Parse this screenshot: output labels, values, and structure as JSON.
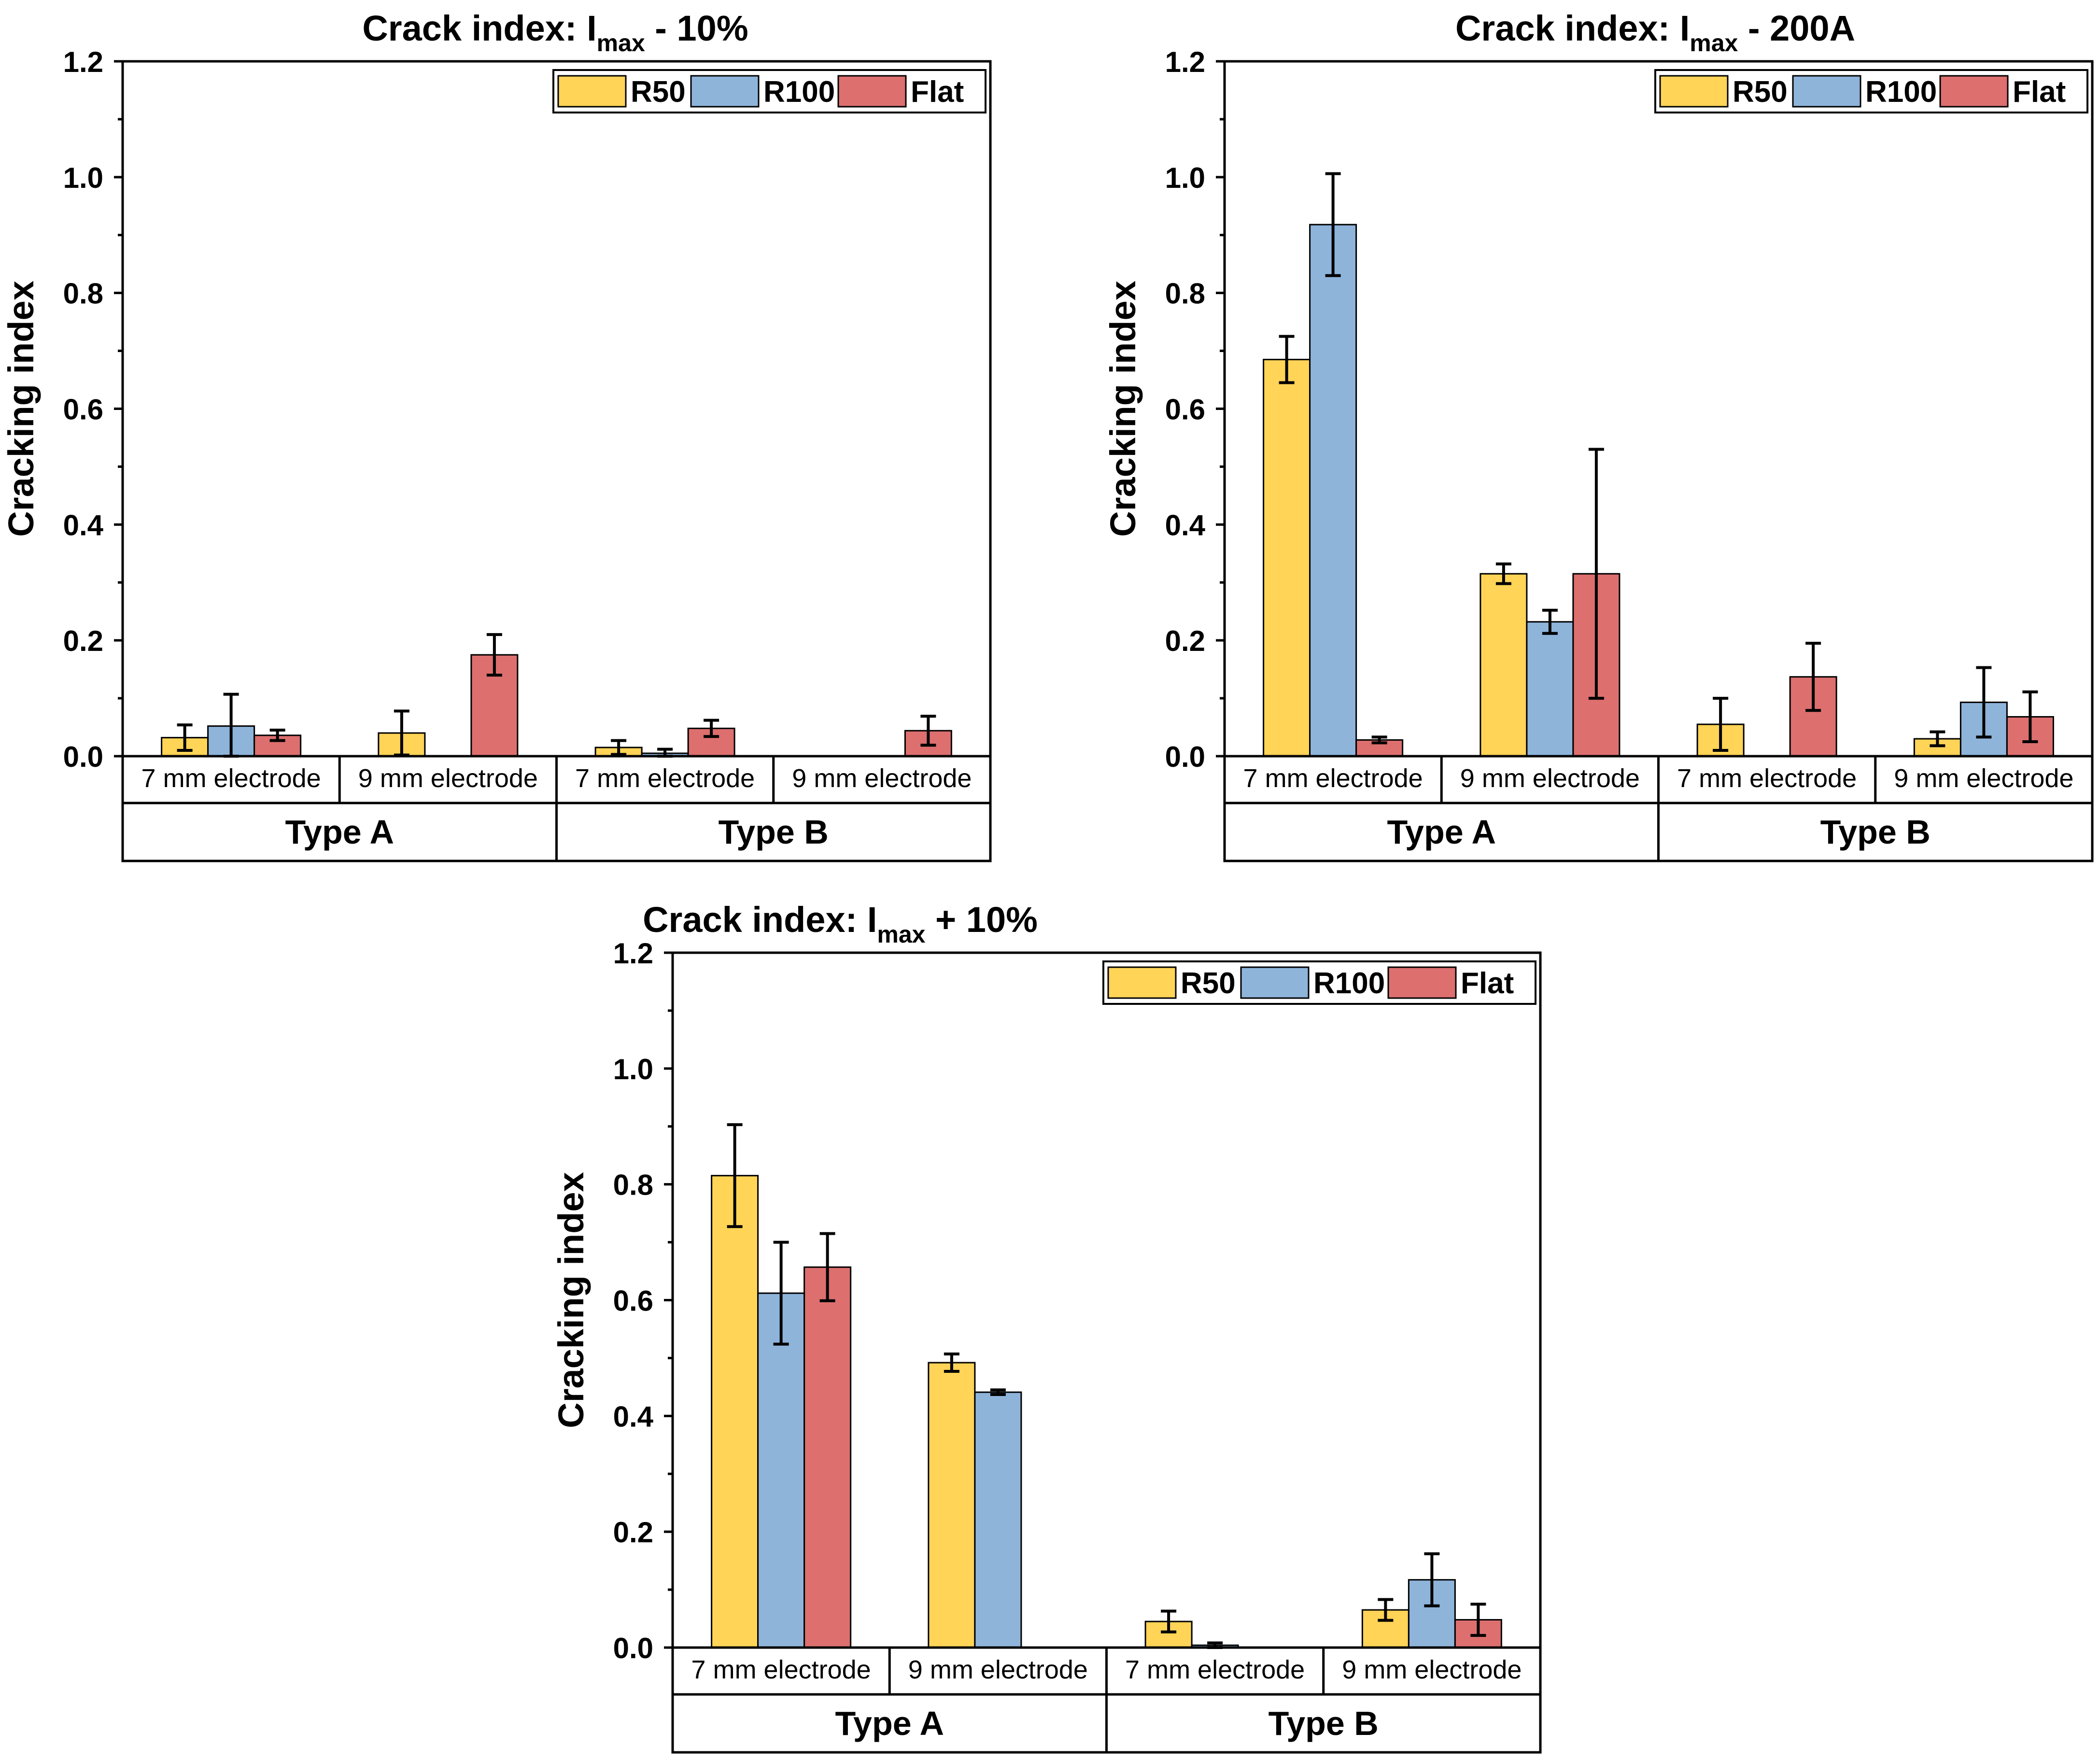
{
  "series_colors": {
    "R50": "#FFD457",
    "R100": "#8EB4DA",
    "Flat": "#DD6F6F"
  },
  "y_tick_labels": [
    "0.0",
    "0.2",
    "0.4",
    "0.6",
    "0.8",
    "1.0",
    "1.2"
  ],
  "chart_data": [
    {
      "type": "bar",
      "title_prefix": "Crack index: I",
      "title_subscript": "max",
      "title_suffix": " - 10%",
      "ylabel": "Cracking index",
      "ylim": [
        0,
        1.2
      ],
      "groups": [
        "Type A",
        "Type B"
      ],
      "categories": [
        "7 mm electrode",
        "9 mm electrode",
        "7 mm electrode",
        "9 mm electrode"
      ],
      "legend": {
        "position": "top-right",
        "entries": [
          "R50",
          "R100",
          "Flat"
        ]
      },
      "series": [
        {
          "name": "R50",
          "values": [
            0.032,
            0.04,
            0.015,
            null
          ],
          "errors": [
            0.022,
            0.038,
            0.012,
            null
          ]
        },
        {
          "name": "R100",
          "values": [
            0.052,
            null,
            0.005,
            null
          ],
          "errors": [
            0.055,
            null,
            0.007,
            null
          ]
        },
        {
          "name": "Flat",
          "values": [
            0.036,
            0.175,
            0.048,
            0.044
          ],
          "errors": [
            0.009,
            0.035,
            0.014,
            0.025
          ]
        }
      ]
    },
    {
      "type": "bar",
      "title_prefix": "Crack index: I",
      "title_subscript": "max",
      "title_suffix": " - 200A",
      "ylabel": "Cracking index",
      "ylim": [
        0,
        1.2
      ],
      "groups": [
        "Type A",
        "Type B"
      ],
      "categories": [
        "7 mm electrode",
        "9 mm electrode",
        "7 mm electrode",
        "9 mm electrode"
      ],
      "legend": {
        "position": "top-right",
        "entries": [
          "R50",
          "R100",
          "Flat"
        ]
      },
      "series": [
        {
          "name": "R50",
          "values": [
            0.685,
            0.315,
            0.055,
            0.03
          ],
          "errors": [
            0.04,
            0.017,
            0.045,
            0.012
          ]
        },
        {
          "name": "R100",
          "values": [
            0.918,
            0.232,
            null,
            0.093
          ],
          "errors": [
            0.088,
            0.02,
            null,
            0.06
          ]
        },
        {
          "name": "Flat",
          "values": [
            0.028,
            0.315,
            0.137,
            0.068
          ],
          "errors": [
            0.005,
            0.215,
            0.058,
            0.043
          ]
        }
      ]
    },
    {
      "type": "bar",
      "title_prefix": "Crack index: I",
      "title_subscript": "max",
      "title_suffix": " + 10%",
      "ylabel": "Cracking index",
      "ylim": [
        0,
        1.2
      ],
      "groups": [
        "Type A",
        "Type B"
      ],
      "categories": [
        "7 mm electrode",
        "9 mm electrode",
        "7 mm electrode",
        "9 mm electrode"
      ],
      "legend": {
        "position": "top-right",
        "entries": [
          "R50",
          "R100",
          "Flat"
        ]
      },
      "series": [
        {
          "name": "R50",
          "values": [
            0.815,
            0.492,
            0.045,
            0.065
          ],
          "errors": [
            0.088,
            0.015,
            0.018,
            0.018
          ]
        },
        {
          "name": "R100",
          "values": [
            0.612,
            0.441,
            0.004,
            0.117
          ],
          "errors": [
            0.088,
            0.004,
            0.004,
            0.045
          ]
        },
        {
          "name": "Flat",
          "values": [
            0.657,
            null,
            null,
            0.048
          ],
          "errors": [
            0.058,
            null,
            null,
            0.027
          ]
        }
      ]
    }
  ]
}
